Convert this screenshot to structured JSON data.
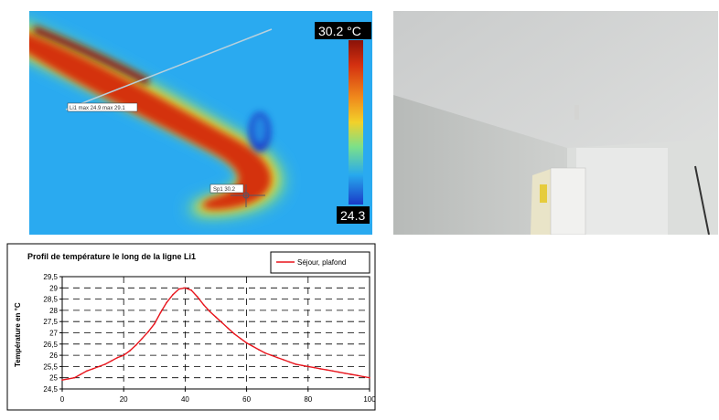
{
  "thermal": {
    "scale_max": "30.2 °C",
    "scale_min": "24.3",
    "line_label": "Li1 max 24.9 max 29.1",
    "spot_label": "Sp1 30.2",
    "colors": {
      "hot": "#cc2a10",
      "warm": "#f2d12a",
      "mid": "#7be08a",
      "cool": "#27a9ee"
    }
  },
  "chart_data": {
    "type": "line",
    "title": "Profil de température le long de la ligne Li1",
    "xlabel": "",
    "ylabel": "Température en °C",
    "xlim": [
      0,
      100
    ],
    "ylim": [
      24.5,
      29.5
    ],
    "xticks": [
      "0",
      "20",
      "40",
      "60",
      "80",
      "100"
    ],
    "yticks": [
      "24,5",
      "25",
      "25,5",
      "26",
      "26,5",
      "27",
      "27,5",
      "28",
      "28,5",
      "29",
      "29,5"
    ],
    "grid": true,
    "legend_position": "top-right",
    "series": [
      {
        "name": "Séjour, plafond",
        "color": "#e8141c",
        "x": [
          0,
          2,
          4,
          6,
          8,
          10,
          12,
          14,
          16,
          18,
          20,
          22,
          24,
          26,
          28,
          30,
          32,
          34,
          36,
          38,
          40,
          42,
          44,
          46,
          48,
          50,
          52,
          54,
          56,
          58,
          60,
          62,
          64,
          66,
          68,
          70,
          72,
          74,
          76,
          78,
          80,
          82,
          84,
          86,
          88,
          90,
          92,
          94,
          96,
          98,
          100
        ],
        "y": [
          24.9,
          24.95,
          25.0,
          25.15,
          25.3,
          25.4,
          25.5,
          25.6,
          25.75,
          25.9,
          26.0,
          26.2,
          26.45,
          26.75,
          27.05,
          27.4,
          27.9,
          28.35,
          28.7,
          28.95,
          29.0,
          28.9,
          28.6,
          28.25,
          27.95,
          27.7,
          27.45,
          27.2,
          26.95,
          26.75,
          26.55,
          26.4,
          26.25,
          26.1,
          26.0,
          25.9,
          25.8,
          25.7,
          25.6,
          25.55,
          25.5,
          25.45,
          25.4,
          25.35,
          25.3,
          25.25,
          25.2,
          25.15,
          25.1,
          25.05,
          25.0
        ]
      }
    ]
  }
}
